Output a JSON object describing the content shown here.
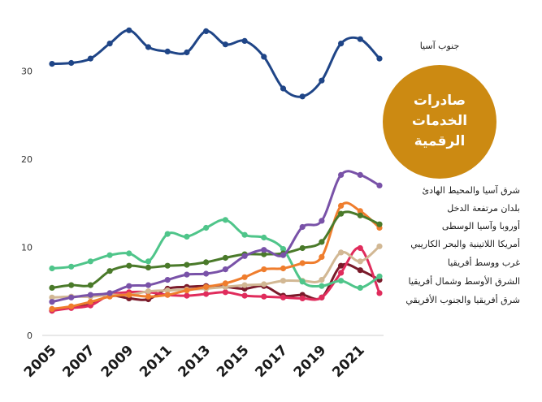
{
  "chart_data": {
    "type": "line",
    "badge": {
      "lines": [
        "صادرات",
        "الخدمات",
        "الرقمية"
      ],
      "color": "#cc8a12"
    },
    "x": [
      2005,
      2006,
      2007,
      2008,
      2009,
      2010,
      2011,
      2012,
      2013,
      2014,
      2015,
      2016,
      2017,
      2018,
      2019,
      2020,
      2021,
      2022
    ],
    "xticks": [
      "2005",
      "2007",
      "2009",
      "2011",
      "2013",
      "2015",
      "2017",
      "2019",
      "2021"
    ],
    "yticks": [
      "0",
      "10",
      "20",
      "30"
    ],
    "ylim": [
      0,
      35
    ],
    "grid": false,
    "series": [
      {
        "name": "جنوب آسيا",
        "color": "#1f4587",
        "values": [
          30.8,
          30.9,
          31.4,
          33.1,
          34.6,
          32.7,
          32.2,
          32.1,
          34.5,
          33.0,
          33.4,
          31.6,
          28.0,
          27.1,
          28.9,
          33.1,
          33.6,
          31.4
        ]
      },
      {
        "name": "شرق آسيا والمحيط الهادئ",
        "color": "#7952a8",
        "values": [
          3.8,
          4.3,
          4.6,
          4.8,
          5.6,
          5.7,
          6.3,
          6.9,
          7.0,
          7.5,
          9.0,
          9.7,
          9.1,
          12.3,
          13.0,
          18.2,
          18.2,
          17.0
        ]
      },
      {
        "name": "بلدان مرتفعة الدخل",
        "color": "#ef7d2d",
        "values": [
          3.0,
          3.3,
          3.8,
          4.4,
          4.6,
          4.4,
          4.6,
          5.1,
          5.5,
          5.9,
          6.6,
          7.5,
          7.6,
          8.2,
          8.9,
          14.7,
          14.1,
          12.2
        ]
      },
      {
        "name": "أوروبا وآسيا الوسطى",
        "color": "#4a7a2a",
        "values": [
          5.4,
          5.7,
          5.7,
          7.3,
          7.9,
          7.7,
          7.9,
          8.0,
          8.3,
          8.8,
          9.2,
          9.2,
          9.3,
          9.9,
          10.6,
          13.8,
          13.6,
          12.6
        ]
      },
      {
        "name": "أمريكا اللاتينية والبحر الكاريبي",
        "color": "#4fc58a",
        "values": [
          7.6,
          7.8,
          8.4,
          9.1,
          9.3,
          8.4,
          11.5,
          11.2,
          12.2,
          13.1,
          11.4,
          11.1,
          9.8,
          6.1,
          5.6,
          6.2,
          5.4,
          6.7
        ]
      },
      {
        "name": "غرب ووسط أفريقيا",
        "color": "#d2b894",
        "values": [
          4.3,
          4.4,
          4.4,
          4.6,
          4.6,
          5.0,
          5.1,
          5.2,
          5.3,
          5.5,
          5.7,
          5.8,
          6.2,
          6.2,
          6.3,
          9.4,
          8.4,
          10.1
        ]
      },
      {
        "name": "الشرق الأوسط وشمال أفريقيا",
        "color": "#e02c5c",
        "values": [
          2.8,
          3.1,
          3.4,
          4.6,
          4.9,
          4.9,
          4.6,
          4.5,
          4.7,
          4.9,
          4.5,
          4.4,
          4.3,
          4.2,
          4.3,
          7.1,
          9.9,
          4.8
        ]
      },
      {
        "name": "شرق أفريقيا والجنوب الأفريقي",
        "color": "#7a1a2a",
        "values": [
          2.8,
          3.2,
          3.5,
          4.5,
          4.2,
          4.1,
          5.3,
          5.5,
          5.6,
          5.5,
          5.3,
          5.6,
          4.5,
          4.6,
          4.3,
          7.9,
          7.4,
          6.3
        ]
      }
    ]
  }
}
